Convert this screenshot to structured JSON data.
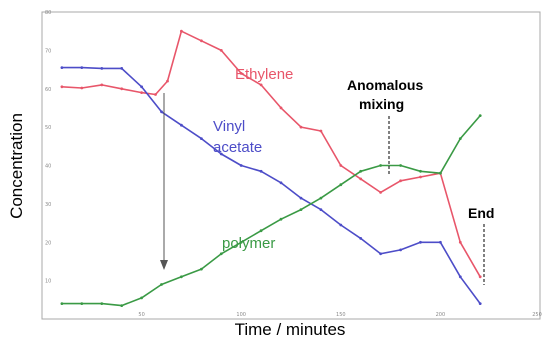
{
  "chart_data": {
    "type": "line",
    "title": "",
    "xlabel": "Time / minutes",
    "ylabel": "Concentration",
    "xlim": [
      0,
      250
    ],
    "ylim": [
      0,
      80
    ],
    "x_ticks": [
      "50",
      "100",
      "150",
      "200",
      "250"
    ],
    "y_ticks": [
      "10",
      "20",
      "30",
      "40",
      "50",
      "60",
      "70",
      "80"
    ],
    "grid": false,
    "legend": "inline labels",
    "series": [
      {
        "name": "Ethylene",
        "color": "#e8566a",
        "x": [
          10,
          20,
          30,
          40,
          50,
          57,
          63,
          70,
          80,
          90,
          100,
          110,
          120,
          130,
          140,
          150,
          160,
          170,
          180,
          190,
          200,
          210,
          220
        ],
        "y": [
          60.5,
          60.2,
          61,
          60,
          59,
          58.5,
          62,
          75,
          72.5,
          70,
          64,
          61,
          55,
          50,
          49,
          40,
          36.5,
          33,
          36,
          37,
          38,
          20,
          11
        ]
      },
      {
        "name": "Vinyl acetate",
        "color": "#4d4dc8",
        "x": [
          10,
          20,
          30,
          40,
          50,
          60,
          70,
          80,
          90,
          100,
          110,
          120,
          130,
          140,
          150,
          160,
          170,
          180,
          190,
          200,
          210,
          220
        ],
        "y": [
          65.5,
          65.5,
          65.3,
          65.3,
          60.5,
          54,
          50.5,
          47,
          43,
          40,
          38.5,
          35.5,
          31.5,
          28.5,
          24.5,
          21,
          17,
          18,
          20,
          20,
          11,
          4
        ]
      },
      {
        "name": "polymer",
        "color": "#3a9a45",
        "x": [
          10,
          20,
          30,
          40,
          50,
          60,
          70,
          80,
          90,
          100,
          110,
          120,
          130,
          140,
          150,
          160,
          170,
          180,
          190,
          200,
          210,
          220
        ],
        "y": [
          4,
          4,
          4,
          3.5,
          5.5,
          9,
          11,
          13,
          17,
          20,
          23,
          26,
          28.5,
          31.5,
          35,
          38.5,
          40,
          40,
          38.5,
          38,
          47,
          53
        ]
      }
    ],
    "annotations": [
      {
        "text": "Anomalous mixing",
        "line1": "Anomalous",
        "line2": "mixing"
      },
      {
        "text": "End"
      }
    ],
    "series_labels": {
      "ethylene": "Ethylene",
      "vinyl_line1": "Vinyl",
      "vinyl_line2": "acetate",
      "polymer": "polymer"
    }
  }
}
